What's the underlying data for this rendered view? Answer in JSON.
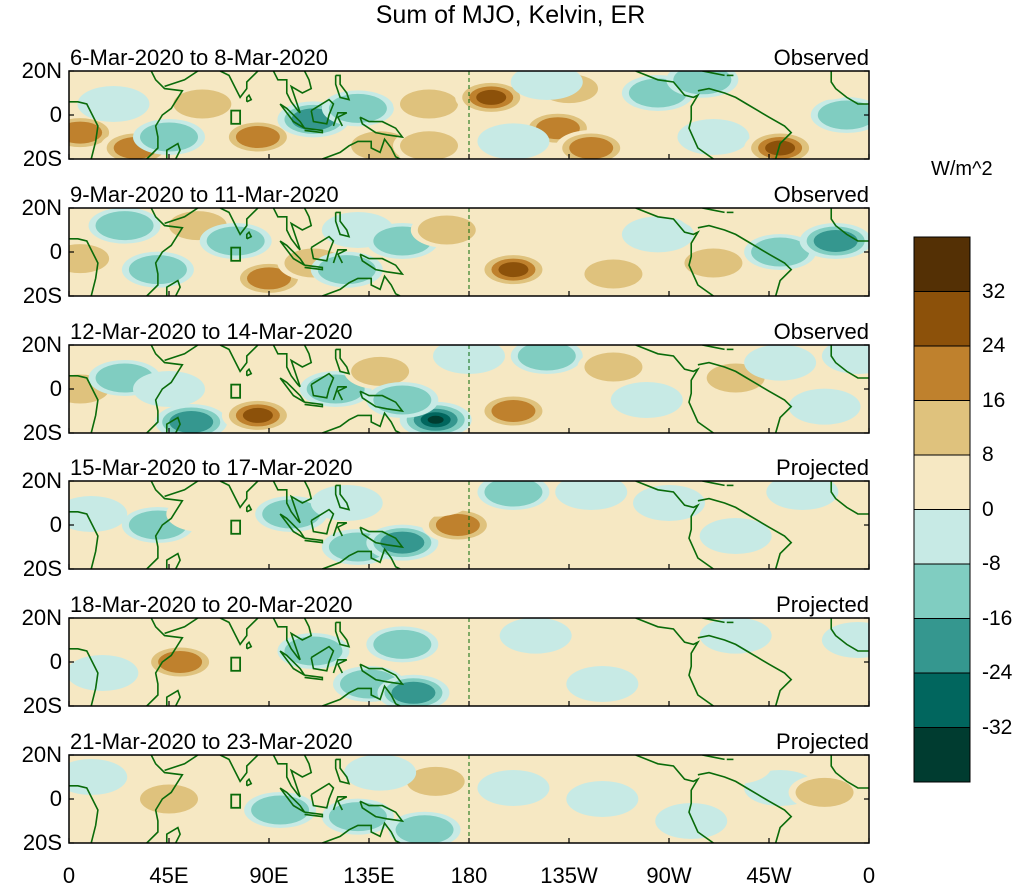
{
  "title": "Sum of MJO, Kelvin, ER",
  "panels": [
    {
      "dates": "6-Mar-2020 to 8-Mar-2020",
      "status": "Observed",
      "blobs": [
        {
          "lon": 5,
          "lat": -8,
          "v": 20
        },
        {
          "lon": 30,
          "lat": -15,
          "v": 22
        },
        {
          "lon": 20,
          "lat": 5,
          "v": -10
        },
        {
          "lon": 60,
          "lat": 5,
          "v": 18
        },
        {
          "lon": 45,
          "lat": -10,
          "v": -18
        },
        {
          "lon": 85,
          "lat": -10,
          "v": 20
        },
        {
          "lon": 110,
          "lat": -2,
          "v": -20
        },
        {
          "lon": 130,
          "lat": 3,
          "v": -18
        },
        {
          "lon": 140,
          "lat": -14,
          "v": 16
        },
        {
          "lon": 162,
          "lat": 5,
          "v": 18
        },
        {
          "lon": 162,
          "lat": -14,
          "v": 14
        },
        {
          "lon": 190,
          "lat": 8,
          "v": 30
        },
        {
          "lon": 220,
          "lat": -6,
          "v": 22
        },
        {
          "lon": 225,
          "lat": 12,
          "v": 14
        },
        {
          "lon": 235,
          "lat": -15,
          "v": 26
        },
        {
          "lon": 200,
          "lat": -12,
          "v": -10
        },
        {
          "lon": 215,
          "lat": 15,
          "v": -8
        },
        {
          "lon": 265,
          "lat": 10,
          "v": -12
        },
        {
          "lon": 285,
          "lat": 16,
          "v": -14
        },
        {
          "lon": 290,
          "lat": -10,
          "v": -8
        },
        {
          "lon": 320,
          "lat": -15,
          "v": 28
        },
        {
          "lon": 350,
          "lat": 0,
          "v": -16
        },
        {
          "lon": 340,
          "lat": 15,
          "v": 10
        }
      ]
    },
    {
      "dates": "9-Mar-2020 to 11-Mar-2020",
      "status": "Observed",
      "blobs": [
        {
          "lon": 5,
          "lat": -3,
          "v": 16
        },
        {
          "lon": 25,
          "lat": 12,
          "v": -14
        },
        {
          "lon": 40,
          "lat": -8,
          "v": -18
        },
        {
          "lon": 58,
          "lat": 12,
          "v": 12
        },
        {
          "lon": 75,
          "lat": 5,
          "v": -16
        },
        {
          "lon": 90,
          "lat": -12,
          "v": 24
        },
        {
          "lon": 110,
          "lat": -5,
          "v": 14
        },
        {
          "lon": 125,
          "lat": -8,
          "v": -18
        },
        {
          "lon": 130,
          "lat": 10,
          "v": -10
        },
        {
          "lon": 150,
          "lat": 5,
          "v": -14
        },
        {
          "lon": 170,
          "lat": 10,
          "v": 12
        },
        {
          "lon": 200,
          "lat": -8,
          "v": 30
        },
        {
          "lon": 220,
          "lat": 8,
          "v": 10
        },
        {
          "lon": 245,
          "lat": -10,
          "v": 12
        },
        {
          "lon": 265,
          "lat": 8,
          "v": -10
        },
        {
          "lon": 290,
          "lat": -5,
          "v": 14
        },
        {
          "lon": 300,
          "lat": 10,
          "v": 10
        },
        {
          "lon": 320,
          "lat": 0,
          "v": -16
        },
        {
          "lon": 345,
          "lat": 5,
          "v": -22
        },
        {
          "lon": 290,
          "lat": 18,
          "v": 10
        }
      ]
    },
    {
      "dates": "12-Mar-2020 to 14-Mar-2020",
      "status": "Observed",
      "blobs": [
        {
          "lon": 5,
          "lat": 0,
          "v": 14
        },
        {
          "lon": 25,
          "lat": 5,
          "v": -14
        },
        {
          "lon": 45,
          "lat": 0,
          "v": -10
        },
        {
          "lon": 55,
          "lat": -15,
          "v": -26
        },
        {
          "lon": 85,
          "lat": -12,
          "v": 28
        },
        {
          "lon": 95,
          "lat": 5,
          "v": 10
        },
        {
          "lon": 120,
          "lat": 0,
          "v": -12
        },
        {
          "lon": 140,
          "lat": 8,
          "v": 18
        },
        {
          "lon": 165,
          "lat": -14,
          "v": -36
        },
        {
          "lon": 150,
          "lat": -5,
          "v": -14
        },
        {
          "lon": 180,
          "lat": 15,
          "v": -10
        },
        {
          "lon": 200,
          "lat": -10,
          "v": 24
        },
        {
          "lon": 215,
          "lat": 15,
          "v": -18
        },
        {
          "lon": 245,
          "lat": 10,
          "v": 12
        },
        {
          "lon": 260,
          "lat": -5,
          "v": -8
        },
        {
          "lon": 300,
          "lat": 5,
          "v": 14
        },
        {
          "lon": 320,
          "lat": 12,
          "v": -10
        },
        {
          "lon": 340,
          "lat": -8,
          "v": -8
        },
        {
          "lon": 355,
          "lat": 15,
          "v": -8
        }
      ]
    },
    {
      "dates": "15-Mar-2020 to 17-Mar-2020",
      "status": "Projected",
      "blobs": [
        {
          "lon": 10,
          "lat": 5,
          "v": -10
        },
        {
          "lon": 40,
          "lat": 0,
          "v": -12
        },
        {
          "lon": 60,
          "lat": 5,
          "v": 10
        },
        {
          "lon": 100,
          "lat": 5,
          "v": -14
        },
        {
          "lon": 130,
          "lat": -10,
          "v": -18
        },
        {
          "lon": 150,
          "lat": -8,
          "v": -24
        },
        {
          "lon": 125,
          "lat": 10,
          "v": -10
        },
        {
          "lon": 175,
          "lat": 0,
          "v": 26
        },
        {
          "lon": 165,
          "lat": 12,
          "v": 10
        },
        {
          "lon": 200,
          "lat": 15,
          "v": -12
        },
        {
          "lon": 235,
          "lat": 15,
          "v": -8
        },
        {
          "lon": 215,
          "lat": -8,
          "v": 6
        },
        {
          "lon": 270,
          "lat": 10,
          "v": -10
        },
        {
          "lon": 300,
          "lat": -5,
          "v": -10
        },
        {
          "lon": 330,
          "lat": 15,
          "v": -8
        },
        {
          "lon": 345,
          "lat": -5,
          "v": 6
        }
      ]
    },
    {
      "dates": "18-Mar-2020 to 20-Mar-2020",
      "status": "Projected",
      "blobs": [
        {
          "lon": 15,
          "lat": -5,
          "v": -8
        },
        {
          "lon": 50,
          "lat": 0,
          "v": 22
        },
        {
          "lon": 80,
          "lat": 10,
          "v": 8
        },
        {
          "lon": 110,
          "lat": 5,
          "v": -14
        },
        {
          "lon": 135,
          "lat": -10,
          "v": -18
        },
        {
          "lon": 155,
          "lat": -14,
          "v": -20
        },
        {
          "lon": 150,
          "lat": 8,
          "v": -12
        },
        {
          "lon": 190,
          "lat": -5,
          "v": 8
        },
        {
          "lon": 210,
          "lat": 12,
          "v": -8
        },
        {
          "lon": 240,
          "lat": -10,
          "v": -10
        },
        {
          "lon": 260,
          "lat": 10,
          "v": 8
        },
        {
          "lon": 300,
          "lat": 12,
          "v": -8
        },
        {
          "lon": 330,
          "lat": -5,
          "v": 8
        },
        {
          "lon": 355,
          "lat": 10,
          "v": -8
        }
      ]
    },
    {
      "dates": "21-Mar-2020 to 23-Mar-2020",
      "status": "Projected",
      "blobs": [
        {
          "lon": 10,
          "lat": 10,
          "v": -8
        },
        {
          "lon": 45,
          "lat": 0,
          "v": 18
        },
        {
          "lon": 70,
          "lat": 10,
          "v": 10
        },
        {
          "lon": 95,
          "lat": -5,
          "v": -12
        },
        {
          "lon": 130,
          "lat": -8,
          "v": -14
        },
        {
          "lon": 160,
          "lat": -14,
          "v": -18
        },
        {
          "lon": 165,
          "lat": 8,
          "v": 12
        },
        {
          "lon": 140,
          "lat": 12,
          "v": -8
        },
        {
          "lon": 200,
          "lat": 5,
          "v": -8
        },
        {
          "lon": 240,
          "lat": 0,
          "v": -10
        },
        {
          "lon": 280,
          "lat": -10,
          "v": -8
        },
        {
          "lon": 320,
          "lat": 5,
          "v": -8
        },
        {
          "lon": 340,
          "lat": 3,
          "v": 16
        },
        {
          "lon": 300,
          "lat": 15,
          "v": 6
        }
      ]
    }
  ],
  "lat_labels": [
    "20N",
    "0",
    "20S"
  ],
  "lon_labels": [
    "0",
    "45E",
    "90E",
    "135E",
    "180",
    "135W",
    "90W",
    "45W",
    "0"
  ],
  "colorbar": {
    "unit": "W/m^2",
    "labels": [
      "32",
      "24",
      "16",
      "8",
      "0",
      "-8",
      "-16",
      "-24",
      "-32"
    ],
    "colors": [
      "#543005",
      "#8c510a",
      "#bf812d",
      "#dfc27d",
      "#f6e8c3",
      "#c7eae5",
      "#80cdc1",
      "#35978f",
      "#01665e",
      "#003c30"
    ]
  },
  "colors": {
    "coast": "#0a6b0a",
    "frame": "#000000"
  }
}
